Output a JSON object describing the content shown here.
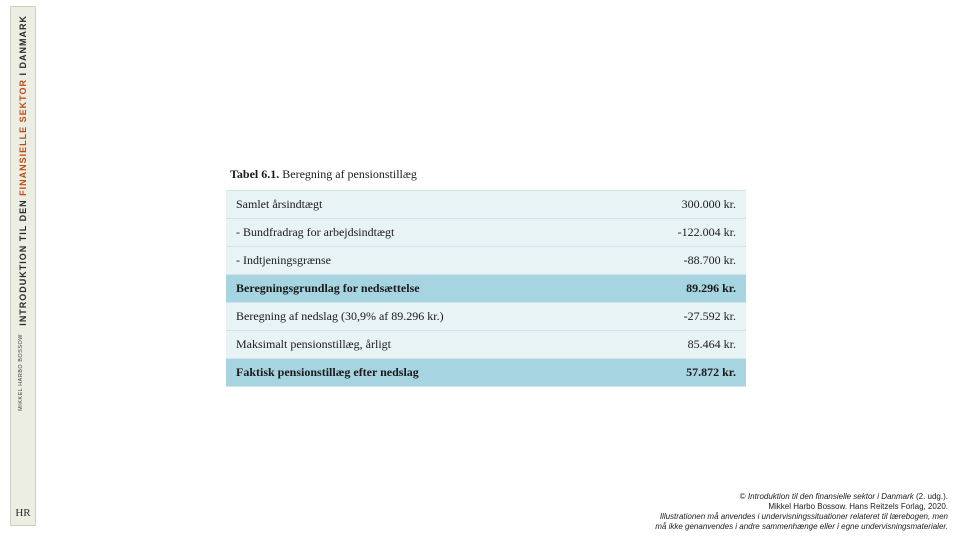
{
  "spine": {
    "title_pre": "INTRODUKTION TIL DEN ",
    "title_accent": "FINANSIELLE SEKTOR",
    "title_post": " I DANMARK",
    "author": "MIKKEL HARBO BOSSOW",
    "logo": "HR"
  },
  "table": {
    "caption_bold": "Tabel 6.1.",
    "caption_rest": "  Beregning af pensionstillæg",
    "rows": [
      {
        "label": "Samlet årsindtægt",
        "value": "300.000 kr.",
        "style": "light"
      },
      {
        "label": "- Bundfradrag for arbejdsindtægt",
        "value": "-122.004 kr.",
        "style": "light"
      },
      {
        "label": "- Indtjeningsgrænse",
        "value": "-88.700 kr.",
        "style": "light"
      },
      {
        "label": "Beregningsgrundlag for nedsættelse",
        "value": "89.296 kr.",
        "style": "dark bold"
      },
      {
        "label": "Beregning af nedslag (30,9% af 89.296 kr.)",
        "value": "-27.592 kr.",
        "style": "light"
      },
      {
        "label": "Maksimalt pensionstillæg, årligt",
        "value": "85.464 kr.",
        "style": "light"
      },
      {
        "label": "Faktisk pensionstillæg efter nedslag",
        "value": "57.872 kr.",
        "style": "dark bold"
      }
    ],
    "colors": {
      "row_light": "#e8f3f6",
      "row_dark": "#a6d4e0",
      "border": "#d0e4ea",
      "text": "#1a1a1a"
    }
  },
  "copyright": {
    "line1_pre": "© ",
    "line1_ital": "Introduktion til den finansielle sektor i Danmark",
    "line1_post": " (2. udg.).",
    "line2": "Mikkel Harbo Bossow. Hans Reitzels Forlag, 2020.",
    "line3_ital": "Illustrationen må anvendes i undervisningssituationer relateret til lærebogen, men",
    "line4_ital": "må ikke genanvendes i andre sammenhænge eller i egne undervisningsmaterialer."
  }
}
